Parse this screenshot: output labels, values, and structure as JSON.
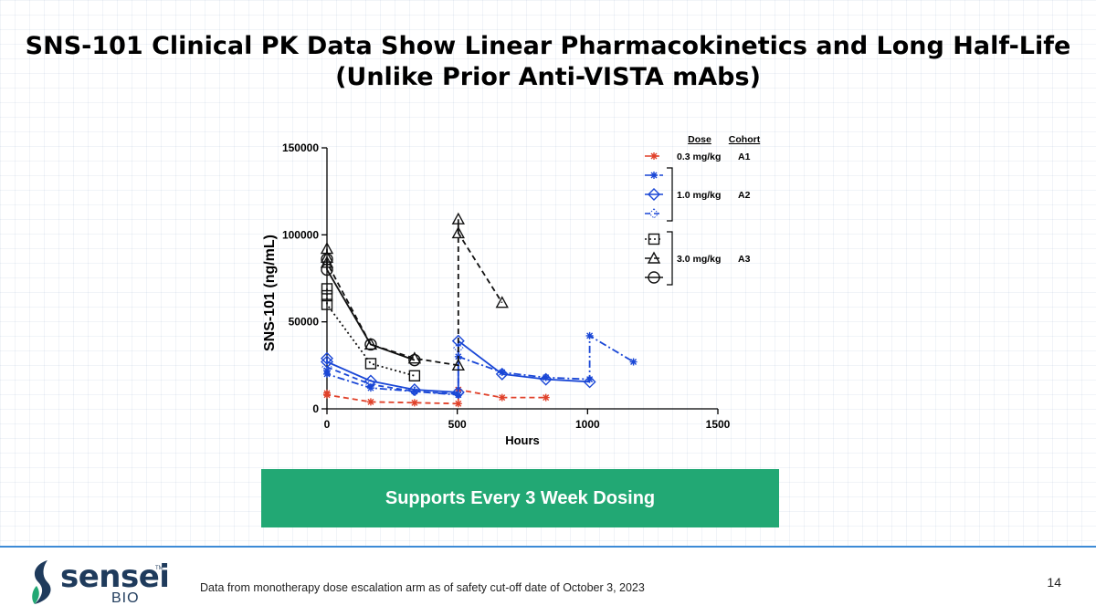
{
  "title": {
    "line1": "SNS-101 Clinical PK Data Show Linear Pharmacokinetics and Long Half-Life",
    "line2": "(Unlike Prior Anti-VISTA mAbs)"
  },
  "banner": {
    "text": "Supports Every 3 Week Dosing"
  },
  "footer": {
    "note": "Data from monotherapy dose escalation arm as of safety cut-off date of October 3, 2023",
    "page": "14",
    "logo_word": "sensei",
    "logo_tm": "TM",
    "logo_sub": "BIO"
  },
  "colors": {
    "red": "#e0412a",
    "blue": "#1a47d6",
    "black": "#111111",
    "banner": "#22a874",
    "footer_line": "#3d8bd6"
  },
  "chart_data": {
    "type": "line",
    "xlabel": "Hours",
    "ylabel": "SNS-101 (ng/mL)",
    "xlim": [
      0,
      1500
    ],
    "ylim": [
      0,
      150000
    ],
    "xticks": [
      0,
      500,
      1000,
      1500
    ],
    "xtick_labels": [
      "0",
      "500",
      "1000",
      "1500"
    ],
    "yticks": [
      0,
      50000,
      100000,
      150000
    ],
    "ytick_labels": [
      "0",
      "50000",
      "100000",
      "150000"
    ],
    "grid": false,
    "legend": {
      "position": "top-right",
      "header_dose": "Dose",
      "header_cohort": "Cohort",
      "groups": [
        {
          "dose": "0.3 mg/kg",
          "cohort": "A1",
          "series": [
            0
          ]
        },
        {
          "dose": "1.0 mg/kg",
          "cohort": "A2",
          "series": [
            1,
            2,
            3
          ]
        },
        {
          "dose": "3.0 mg/kg",
          "cohort": "A3",
          "series": [
            4,
            5,
            6
          ]
        }
      ]
    },
    "series": [
      {
        "color": "#e0412a",
        "marker": "star",
        "dash": "dash",
        "x": [
          0,
          0,
          168,
          336,
          504,
          504,
          672,
          840
        ],
        "y": [
          9000,
          8000,
          4000,
          3500,
          3000,
          11000,
          6500,
          6500
        ]
      },
      {
        "color": "#1a47d6",
        "marker": "star",
        "dash": "dashdot",
        "x": [
          0,
          0,
          168,
          336,
          504,
          504,
          672,
          840,
          1008,
          1008,
          1176
        ],
        "y": [
          22000,
          20000,
          12000,
          10000,
          8000,
          30000,
          21000,
          18000,
          17000,
          42000,
          27000
        ]
      },
      {
        "color": "#1a47d6",
        "marker": "diamond-open",
        "dash": "solid",
        "x": [
          0,
          0,
          168,
          336,
          504,
          504,
          672,
          840,
          1008
        ],
        "y": [
          29000,
          27000,
          16000,
          11000,
          9500,
          39000,
          20000,
          17000,
          15500
        ]
      },
      {
        "color": "#1a47d6",
        "marker": "diamond-dot",
        "dash": "dash",
        "x": [
          0,
          168,
          336,
          504,
          504
        ],
        "y": [
          24000,
          14000,
          10000,
          8500,
          35000
        ]
      },
      {
        "color": "#111111",
        "marker": "square",
        "dash": "dot",
        "x": [
          0,
          0,
          0,
          168,
          336
        ],
        "y": [
          69000,
          65000,
          60000,
          26000,
          19000
        ]
      },
      {
        "color": "#111111",
        "marker": "triangle",
        "dash": "dash",
        "x": [
          0,
          0,
          0,
          168,
          336,
          504,
          504,
          504,
          672
        ],
        "y": [
          92000,
          87000,
          84000,
          37000,
          29000,
          25000,
          109000,
          101000,
          61000
        ]
      },
      {
        "color": "#111111",
        "marker": "circle",
        "dash": "solid",
        "x": [
          0,
          0,
          168,
          336
        ],
        "y": [
          86000,
          80000,
          37000,
          28000
        ]
      }
    ]
  }
}
